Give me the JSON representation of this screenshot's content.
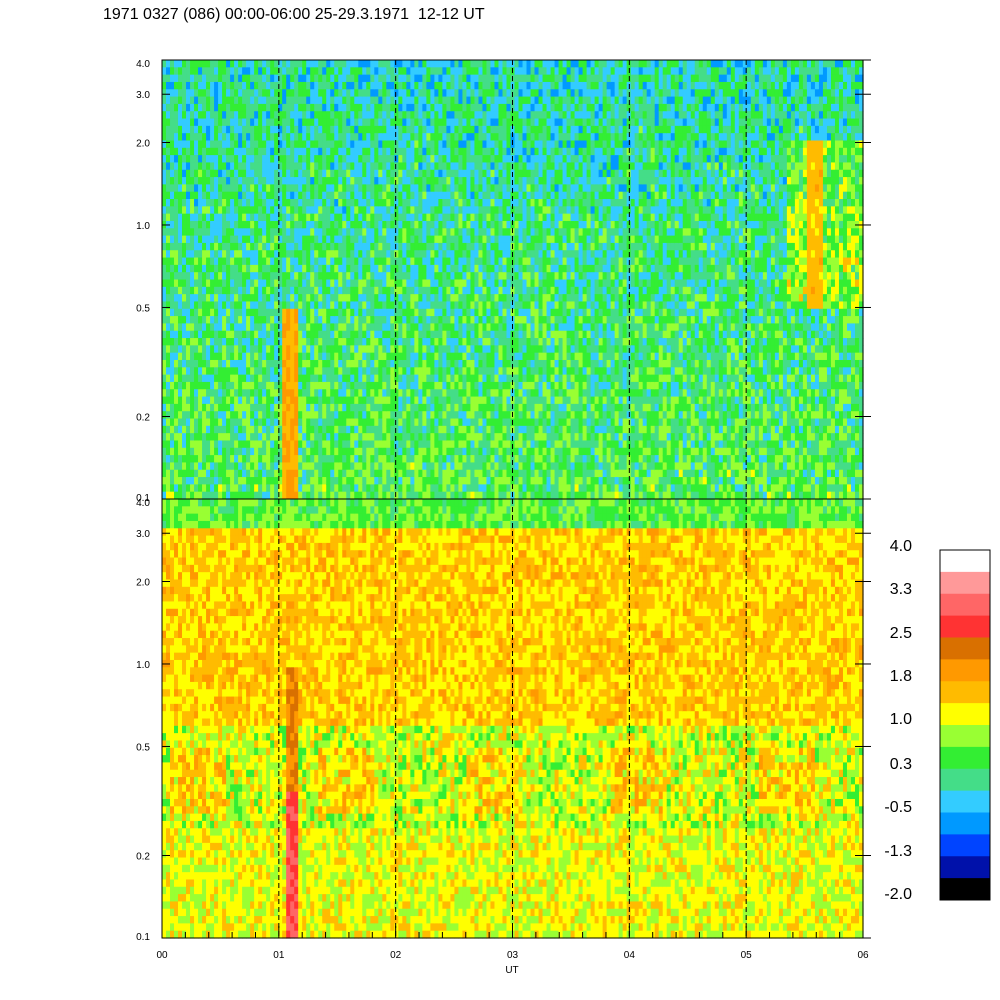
{
  "title": "1971 0327 (086) 00:00-06:00 25-29.3.1971  12-12 UT",
  "chart_data": [
    {
      "type": "heatmap",
      "panel": "top",
      "title": "",
      "xlabel": "",
      "ylabel": "",
      "y_scale": "log",
      "ylim": [
        0.1,
        4.0
      ],
      "y_ticks": [
        "0.1",
        "0.2",
        "0.5",
        "1.0",
        "2.0",
        "3.0",
        "4.0"
      ],
      "xlim": [
        0,
        6
      ],
      "x_ticks": [
        "00",
        "01",
        "02",
        "03",
        "04",
        "05",
        "06"
      ],
      "dominant_levels": [
        "0.3",
        "-0.5",
        "1.0"
      ],
      "features": [
        {
          "x": 1.1,
          "y_range": [
            0.1,
            0.5
          ],
          "level": "1.8"
        },
        {
          "x": 5.6,
          "y_range": [
            0.5,
            2.0
          ],
          "level": "1.0"
        }
      ]
    },
    {
      "type": "heatmap",
      "panel": "bottom",
      "title": "",
      "xlabel": "UT",
      "ylabel": "",
      "y_scale": "log",
      "ylim": [
        0.1,
        4.0
      ],
      "y_ticks": [
        "0.1",
        "0.2",
        "0.5",
        "1.0",
        "2.0",
        "3.0",
        "4.0"
      ],
      "xlim": [
        0,
        6
      ],
      "x_ticks": [
        "00",
        "01",
        "02",
        "03",
        "04",
        "05",
        "06"
      ],
      "dominant_levels": [
        "1.0",
        "1.8",
        "0.3"
      ],
      "features": [
        {
          "x": 1.1,
          "y_range": [
            0.1,
            0.35
          ],
          "level": "3.3"
        },
        {
          "x": 1.1,
          "y_range": [
            0.35,
            1.0
          ],
          "level": "2.5"
        }
      ]
    }
  ],
  "vertical_markers": [
    1,
    2,
    3,
    4,
    5
  ],
  "colorbar": {
    "labels": [
      "4.0",
      "3.3",
      "2.5",
      "1.8",
      "1.0",
      "0.3",
      "-0.5",
      "-1.3",
      "-2.0"
    ],
    "colors_top_to_bottom": [
      "#ffffff",
      "#ff9999",
      "#ff6666",
      "#ff3333",
      "#d97000",
      "#ff9900",
      "#ffbb00",
      "#ffff00",
      "#99ff33",
      "#33ee33",
      "#44dd88",
      "#33ccff",
      "#0099ff",
      "#0044ff",
      "#0011aa",
      "#000000"
    ]
  }
}
